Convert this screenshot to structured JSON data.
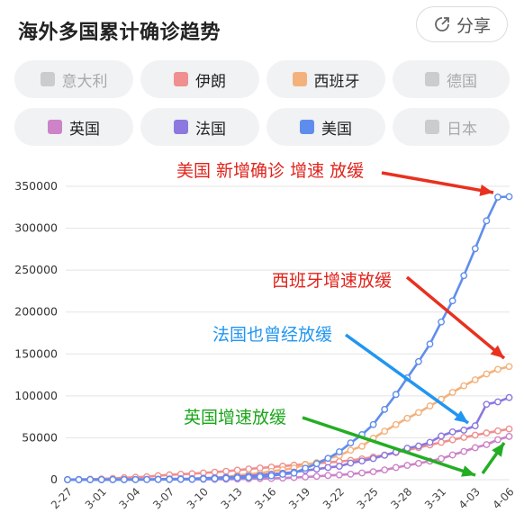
{
  "header": {
    "title": "海外多国累计确诊趋势",
    "share_label": "分享"
  },
  "legend": [
    {
      "label": "意大利",
      "color": "#cccccc",
      "active": false
    },
    {
      "label": "伊朗",
      "color": "#ef8f8f",
      "active": true
    },
    {
      "label": "西班牙",
      "color": "#f3b27c",
      "active": true
    },
    {
      "label": "德国",
      "color": "#cccccc",
      "active": false
    },
    {
      "label": "英国",
      "color": "#cc83c8",
      "active": true
    },
    {
      "label": "法国",
      "color": "#8c78de",
      "active": true
    },
    {
      "label": "美国",
      "color": "#5f8ded",
      "active": true
    },
    {
      "label": "日本",
      "color": "#cccccc",
      "active": false
    }
  ],
  "annotations": {
    "us": "美国 新增确诊 增速 放缓",
    "spain": "西班牙增速放缓",
    "france": "法国也曾经放缓",
    "uk": "英国增速放缓"
  },
  "chart_data": {
    "type": "line",
    "x": [
      "2-27",
      "2-28",
      "2-29",
      "3-01",
      "3-02",
      "3-03",
      "3-04",
      "3-05",
      "3-06",
      "3-07",
      "3-08",
      "3-09",
      "3-10",
      "3-11",
      "3-12",
      "3-13",
      "3-14",
      "3-15",
      "3-16",
      "3-17",
      "3-18",
      "3-19",
      "3-20",
      "3-21",
      "3-22",
      "3-23",
      "3-24",
      "3-25",
      "3-26",
      "3-27",
      "3-28",
      "3-29",
      "3-30",
      "3-31",
      "4-01",
      "4-02",
      "4-03",
      "4-04",
      "4-05",
      "4-06"
    ],
    "x_tick_labels": [
      "2-27",
      "3-01",
      "3-04",
      "3-07",
      "3-10",
      "3-13",
      "3-16",
      "3-19",
      "3-22",
      "3-25",
      "3-28",
      "3-31",
      "4-03",
      "4-06"
    ],
    "y_ticks": [
      0,
      50000,
      100000,
      150000,
      200000,
      250000,
      300000,
      350000
    ],
    "ylim": [
      0,
      350000
    ],
    "grid": true,
    "series": [
      {
        "name": "伊朗",
        "color": "#ef8f8f",
        "values": [
          245,
          388,
          593,
          978,
          1501,
          2336,
          2922,
          3513,
          4747,
          5823,
          6566,
          7161,
          8042,
          9000,
          10075,
          11364,
          12729,
          13938,
          14991,
          16169,
          17361,
          18407,
          19644,
          20610,
          21638,
          23049,
          24811,
          27017,
          29406,
          32332,
          35408,
          38309,
          41495,
          44605,
          47593,
          50468,
          53183,
          55743,
          58226,
          60500
        ]
      },
      {
        "name": "西班牙",
        "color": "#f3b27c",
        "values": [
          15,
          32,
          45,
          84,
          120,
          165,
          222,
          259,
          400,
          500,
          673,
          1073,
          1695,
          2277,
          3146,
          5232,
          6391,
          7798,
          9942,
          11748,
          13910,
          17963,
          20410,
          25374,
          28768,
          35136,
          39885,
          49515,
          57786,
          65719,
          73235,
          80110,
          87956,
          95923,
          104118,
          112065,
          119199,
          126168,
          131646,
          135032
        ]
      },
      {
        "name": "英国",
        "color": "#cc83c8",
        "values": [
          15,
          20,
          23,
          36,
          40,
          51,
          87,
          115,
          163,
          206,
          273,
          321,
          382,
          456,
          590,
          798,
          1140,
          1391,
          1543,
          1950,
          2626,
          3269,
          3983,
          5018,
          5683,
          6650,
          8077,
          9529,
          11658,
          14543,
          17089,
          19522,
          22141,
          25150,
          29474,
          33718,
          38168,
          41903,
          47806,
          51608
        ]
      },
      {
        "name": "法国",
        "color": "#8c78de",
        "values": [
          38,
          57,
          100,
          130,
          191,
          204,
          285,
          377,
          653,
          949,
          1126,
          1209,
          1784,
          2281,
          2876,
          3661,
          4499,
          5423,
          6633,
          7730,
          9134,
          10995,
          12612,
          14459,
          16018,
          19856,
          22304,
          25233,
          29155,
          32964,
          37575,
          40174,
          44550,
          52128,
          56989,
          59105,
          64338,
          89953,
          92839,
          98010
        ]
      },
      {
        "name": "美国",
        "color": "#5f8ded",
        "values": [
          60,
          60,
          68,
          74,
          98,
          118,
          149,
          217,
          262,
          402,
          518,
          583,
          959,
          1281,
          1663,
          2179,
          2726,
          3499,
          4632,
          6421,
          7786,
          13680,
          19101,
          25493,
          33272,
          43847,
          53740,
          65778,
          83836,
          101657,
          121478,
          140886,
          161807,
          188172,
          213372,
          243453,
          275586,
          308850,
          337072,
          337635
        ]
      }
    ]
  }
}
